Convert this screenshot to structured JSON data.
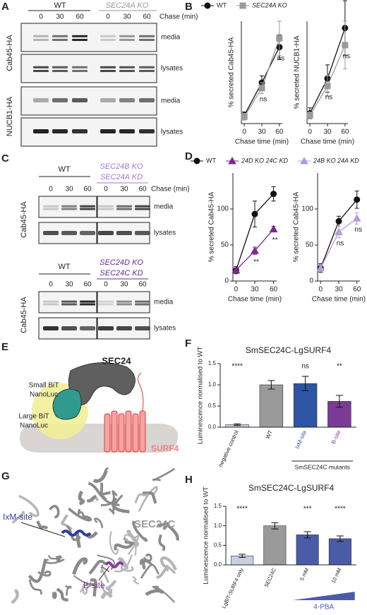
{
  "panel_labels": [
    "A",
    "B",
    "C",
    "D",
    "E",
    "F",
    "G",
    "H"
  ],
  "blots_A": {
    "groups": [
      "WT",
      "SEC24A KO"
    ],
    "chase_label": "Chase (min)",
    "lanes": [
      "0",
      "30",
      "60"
    ],
    "rows": [
      {
        "protein": "Cab45-HA",
        "fractions": [
          "media",
          "lysates"
        ]
      },
      {
        "protein": "NUCB1-HA",
        "fractions": [
          "media",
          "lysates"
        ]
      }
    ]
  },
  "blots_C": {
    "chase_label": "Chase (min)",
    "lanes": [
      "0",
      "30",
      "60"
    ],
    "protein": "Cab45-HA",
    "fractions": [
      "media",
      "lysates"
    ],
    "top": {
      "control": "WT",
      "mutant": [
        "SEC24B KO",
        "SEC24A KD"
      ]
    },
    "bottom": {
      "control": "WT",
      "mutant": [
        "SEC24D KO",
        "SEC24C KD"
      ]
    }
  },
  "diagram_E": {
    "sec24": "SEC24",
    "small_bit": [
      "Small BiT",
      "NanoLuc"
    ],
    "large_bit": [
      "Large BiT",
      "NanoLuc"
    ],
    "surf4": "SURF4"
  },
  "structure_G": {
    "ixm_site": "IxM-site",
    "protein": "SEC24C",
    "b_site": "B-site"
  },
  "chart_data": [
    {
      "type": "line",
      "ylabel": "% secreted Cab45-HA",
      "xlabel": "Chase time (min)",
      "x": [
        0,
        30,
        60
      ],
      "xlim": [
        -5,
        65
      ],
      "xticks": [
        0,
        30,
        60
      ],
      "ylim": [
        0,
        150
      ],
      "series": [
        {
          "name": "WT",
          "color": "#111111",
          "marker": "circle",
          "values": [
            12,
            60,
            112
          ],
          "errors": [
            5,
            10,
            18
          ]
        },
        {
          "name": "SEC24A KO",
          "color": "#9a9a9a",
          "marker": "square",
          "values": [
            10,
            52,
            125
          ],
          "errors": [
            5,
            8,
            25
          ]
        }
      ],
      "annotations": [
        {
          "x": 30,
          "text": "ns"
        },
        {
          "x": 60,
          "text": "ns"
        }
      ]
    },
    {
      "type": "line",
      "ylabel": "% secreted NUCB1-HA",
      "xlabel": "Chase time (min)",
      "x": [
        0,
        30,
        60
      ],
      "xlim": [
        -5,
        65
      ],
      "xticks": [
        0,
        30,
        60
      ],
      "ylim": [
        0,
        150
      ],
      "series": [
        {
          "color": "#111111",
          "marker": "circle",
          "values": [
            15,
            66,
            140
          ],
          "errors": [
            8,
            20,
            40
          ]
        },
        {
          "color": "#9a9a9a",
          "marker": "square",
          "values": [
            12,
            55,
            115
          ],
          "errors": [
            5,
            15,
            35
          ]
        }
      ],
      "annotations": [
        {
          "x": 30,
          "text": "ns"
        },
        {
          "x": 60,
          "text": "ns"
        }
      ]
    },
    {
      "type": "line",
      "ylabel": "% secreted Cab45-HA",
      "xlabel": "Chase time (min)",
      "x": [
        0,
        30,
        60
      ],
      "xlim": [
        -5,
        65
      ],
      "xticks": [
        0,
        30,
        60
      ],
      "ylim": [
        0,
        150
      ],
      "yticks": [
        0,
        50,
        100
      ],
      "series": [
        {
          "name": "WT",
          "color": "#111111",
          "marker": "circle",
          "values": [
            15,
            93,
            121
          ],
          "errors": [
            5,
            18,
            10
          ]
        },
        {
          "name": "24D KO 24C KD",
          "color": "#7a2a8c",
          "marker": "triangle",
          "values": [
            15,
            42,
            72
          ],
          "errors": [
            3,
            5,
            4
          ]
        }
      ],
      "annotations": [
        {
          "x": 30,
          "text": "**"
        },
        {
          "x": 60,
          "text": "**"
        }
      ]
    },
    {
      "type": "line",
      "ylabel": "% secreted Cab45-HA",
      "xlabel": "Chase time (min)",
      "x": [
        0,
        30,
        60
      ],
      "xlim": [
        -5,
        65
      ],
      "xticks": [
        0,
        30,
        60
      ],
      "ylim": [
        0,
        150
      ],
      "yticks": [
        0,
        50,
        100
      ],
      "series": [
        {
          "color": "#111111",
          "marker": "circle",
          "values": [
            18,
            83,
            113
          ],
          "errors": [
            6,
            7,
            12
          ]
        },
        {
          "name": "24B KO 24A KD",
          "color": "#b59ad6",
          "marker": "triangle",
          "values": [
            18,
            68,
            87
          ],
          "errors": [
            5,
            8,
            8
          ]
        }
      ],
      "annotations": [
        {
          "x": 30,
          "text": "ns"
        },
        {
          "x": 60,
          "text": "ns"
        }
      ]
    },
    {
      "type": "bar",
      "title": "SmSEC24C-LgSURF4",
      "ylabel": "Luminescence normalised to WT",
      "categories": [
        "negative control",
        "WT",
        "IxM-site",
        "B-site"
      ],
      "values": [
        0.06,
        1.0,
        1.03,
        0.61
      ],
      "errors": [
        0.02,
        0.1,
        0.17,
        0.14
      ],
      "colors": [
        "#c9cfe3",
        "#9a9a9a",
        "#2e55a3",
        "#7b3a96"
      ],
      "tick_label_colors": [
        "#222222",
        "#222222",
        "#2e55a3",
        "#7b3a96"
      ],
      "ylim": [
        0,
        1.5
      ],
      "yticks": [
        {
          "value": 0,
          "label": "0.0"
        },
        0.5,
        {
          "value": 1,
          "label": "1.0"
        },
        1.5
      ],
      "annotations": [
        {
          "category": "negative control",
          "text": "****"
        },
        {
          "category": "IxM-site",
          "text": "ns"
        },
        {
          "category": "B-site",
          "text": "**"
        }
      ],
      "group": {
        "label": "SmSEC24C mutants",
        "categories": [
          "IxM-site",
          "B-site"
        ]
      }
    },
    {
      "type": "bar",
      "title": "SmSEC24C-LgSURF4",
      "ylabel": "Luminescence normalised to WT",
      "categories": [
        "LgBiT-SURF4 only",
        "SEC24C",
        "5 mM",
        "10 mM"
      ],
      "values": [
        0.23,
        1.0,
        0.77,
        0.67
      ],
      "errors": [
        0.04,
        0.08,
        0.08,
        0.07
      ],
      "colors": [
        "#c9cfe3",
        "#9a9a9a",
        "#4a5ca8",
        "#4a5ca8"
      ],
      "ylim": [
        0,
        1.5
      ],
      "yticks": [
        {
          "value": 0,
          "label": "0.0"
        },
        0.5,
        {
          "value": 1,
          "label": "1.0"
        },
        1.5
      ],
      "annotations": [
        {
          "category": "LgBiT-SURF4 only",
          "text": "****"
        },
        {
          "category": "5 mM",
          "text": "***"
        },
        {
          "category": "10 mM",
          "text": "****"
        }
      ],
      "treatment": {
        "label": "4-PBA",
        "categories": [
          "5 mM",
          "10 mM"
        ],
        "color": "#4a5ca8"
      }
    }
  ]
}
